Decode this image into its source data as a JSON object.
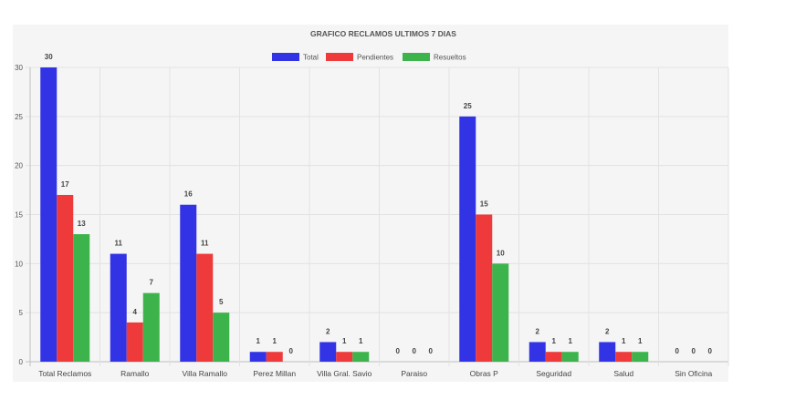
{
  "chart_data": {
    "type": "bar",
    "title": "GRAFICO RECLAMOS ULTIMOS 7 DIAS",
    "categories": [
      "Total Reclamos",
      "Ramallo",
      "Villa Ramallo",
      "Perez Millan",
      "Villa Gral. Savio",
      "Paraiso",
      "Obras P",
      "Seguridad",
      "Salud",
      "Sin Oficina"
    ],
    "series": [
      {
        "name": "Total",
        "color": "#3333e6",
        "values": [
          30,
          11,
          16,
          1,
          2,
          0,
          25,
          2,
          2,
          0
        ]
      },
      {
        "name": "Pendientes",
        "color": "#ee3a3a",
        "values": [
          17,
          4,
          11,
          1,
          1,
          0,
          15,
          1,
          1,
          0
        ]
      },
      {
        "name": "Resueltos",
        "color": "#3cb44b",
        "values": [
          13,
          7,
          5,
          0,
          1,
          0,
          10,
          1,
          1,
          0
        ]
      }
    ],
    "ylim": [
      0,
      30
    ],
    "yticks": [
      0,
      5,
      10,
      15,
      20,
      25,
      30
    ],
    "grid": true,
    "legend_position": "top-center",
    "data_labels": true
  }
}
